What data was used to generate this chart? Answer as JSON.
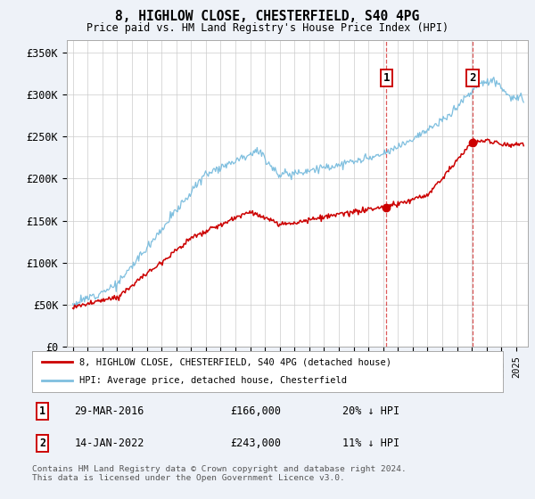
{
  "title": "8, HIGHLOW CLOSE, CHESTERFIELD, S40 4PG",
  "subtitle": "Price paid vs. HM Land Registry's House Price Index (HPI)",
  "ylabel_ticks": [
    "£0",
    "£50K",
    "£100K",
    "£150K",
    "£200K",
    "£250K",
    "£300K",
    "£350K"
  ],
  "ytick_values": [
    0,
    50000,
    100000,
    150000,
    200000,
    250000,
    300000,
    350000
  ],
  "ylim": [
    0,
    365000
  ],
  "xlim_start": 1994.6,
  "xlim_end": 2025.8,
  "hpi_color": "#7fbfdf",
  "sale_color": "#cc0000",
  "marker1_date": 2016.22,
  "marker1_price": 166000,
  "marker2_date": 2022.04,
  "marker2_price": 243000,
  "legend_sale": "8, HIGHLOW CLOSE, CHESTERFIELD, S40 4PG (detached house)",
  "legend_hpi": "HPI: Average price, detached house, Chesterfield",
  "footnote": "Contains HM Land Registry data © Crown copyright and database right 2024.\nThis data is licensed under the Open Government Licence v3.0.",
  "background_color": "#eef2f8",
  "plot_bg_color": "#ffffff",
  "grid_color": "#cccccc"
}
